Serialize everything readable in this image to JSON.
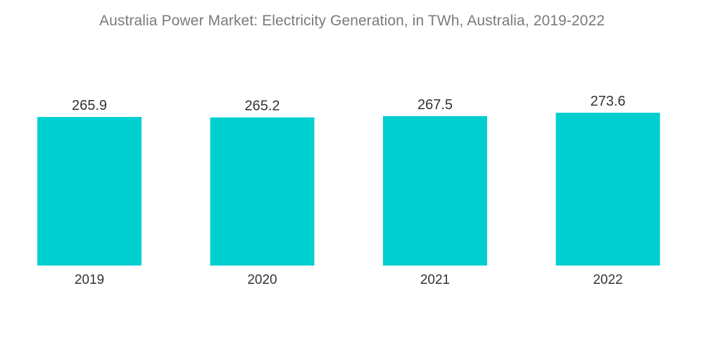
{
  "chart_data": {
    "type": "bar",
    "title": "Australia Power Market: Electricity Generation, in TWh, Australia, 2019-2022",
    "categories": [
      "2019",
      "2020",
      "2021",
      "2022"
    ],
    "values": [
      265.9,
      265.2,
      267.5,
      273.6
    ],
    "value_labels": [
      "265.9",
      "265.2",
      "267.5",
      "273.6"
    ],
    "xlabel": "",
    "ylabel": "",
    "ylim": [
      0,
      273.6
    ],
    "grid": false,
    "legend": "none",
    "colors": {
      "bar": "#00cfd0"
    }
  }
}
